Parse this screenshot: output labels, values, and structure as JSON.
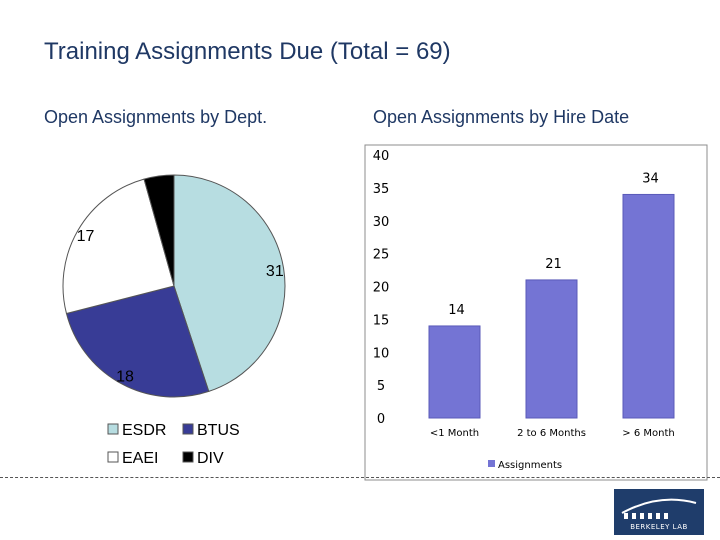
{
  "title": "Training Assignments Due (Total = 69)",
  "chart_data": [
    {
      "type": "pie",
      "title": "Open Assignments by Dept.",
      "slices": [
        {
          "label": "ESDR",
          "value": 31,
          "color": "#b7dde1",
          "value_label": "31"
        },
        {
          "label": "BTUS",
          "value": 18,
          "color": "#383c96",
          "value_label": "18"
        },
        {
          "label": "EAEI",
          "value": 17,
          "color": "#ffffff",
          "value_label": "17"
        },
        {
          "label": "DIV",
          "value": 3,
          "color": "#000000",
          "value_label": ""
        }
      ],
      "legend": {
        "placement": "bottom",
        "items": [
          "ESDR",
          "BTUS",
          "EAEI",
          "DIV"
        ]
      }
    },
    {
      "type": "bar",
      "title": "Open Assignments by Hire Date",
      "categories": [
        "<1 Month",
        "2 to 6 Months",
        "> 6 Month"
      ],
      "series": [
        {
          "name": "Assignments",
          "values": [
            14,
            21,
            34
          ],
          "color": "#7474d4"
        }
      ],
      "ylim": [
        0,
        40
      ],
      "yticks": [
        0,
        5,
        10,
        15,
        20,
        25,
        30,
        35,
        40
      ],
      "grid": false,
      "legend": {
        "placement": "bottom"
      }
    }
  ],
  "logo": {
    "text": "BERKELEY LAB"
  }
}
